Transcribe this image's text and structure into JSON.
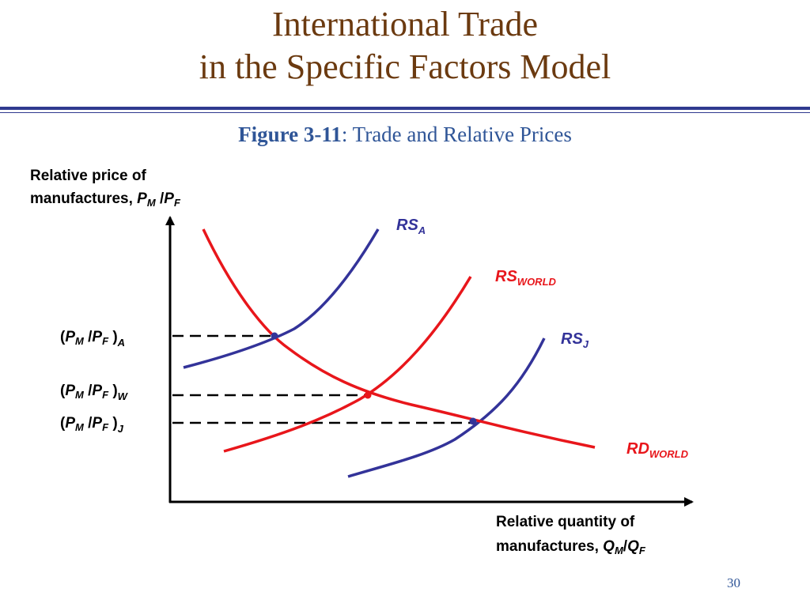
{
  "slide": {
    "title_line1": "International Trade",
    "title_line2": "in the Specific Factors Model",
    "figure_number": "Figure 3-11",
    "figure_separator": ":",
    "figure_title": " Trade and Relative Prices",
    "page_number": "30"
  },
  "colors": {
    "title": "#6B3A10",
    "rule": "#2F3A8F",
    "caption": "#2F5597",
    "supply_curves": "#333399",
    "world_curves": "#E8161B",
    "axes": "#000000"
  },
  "axes": {
    "y_label_line1": "Relative price of",
    "y_label_line2_text": "manufactures, ",
    "y_label_math": {
      "a": "P",
      "a_sub": "M",
      "sep": " /",
      "b": "P",
      "b_sub": "F"
    },
    "x_label_line1": "Relative quantity of",
    "x_label_line2_text": "manufactures, ",
    "x_label_math": {
      "a": "Q",
      "a_sub": "M",
      "sep": "/",
      "b": "Q",
      "b_sub": "F"
    }
  },
  "curves": {
    "rs_a": {
      "main": "RS",
      "sub": "A"
    },
    "rs_world": {
      "main": "RS",
      "sub": "WORLD"
    },
    "rs_j": {
      "main": "RS",
      "sub": "J"
    },
    "rd_world": {
      "main": "RD",
      "sub": "WORLD"
    }
  },
  "price_levels": [
    {
      "open": "(",
      "a": "P",
      "a_sub": "M",
      "sep": " /",
      "b": "P",
      "b_sub": "F",
      "close": " )",
      "tag": "A"
    },
    {
      "open": "(",
      "a": "P",
      "a_sub": "M",
      "sep": " /",
      "b": "P",
      "b_sub": "F",
      "close": " )",
      "tag": "W"
    },
    {
      "open": "(",
      "a": "P",
      "a_sub": "M",
      "sep": " /",
      "b": "P",
      "b_sub": "F",
      "close": " )",
      "tag": "J"
    }
  ]
}
